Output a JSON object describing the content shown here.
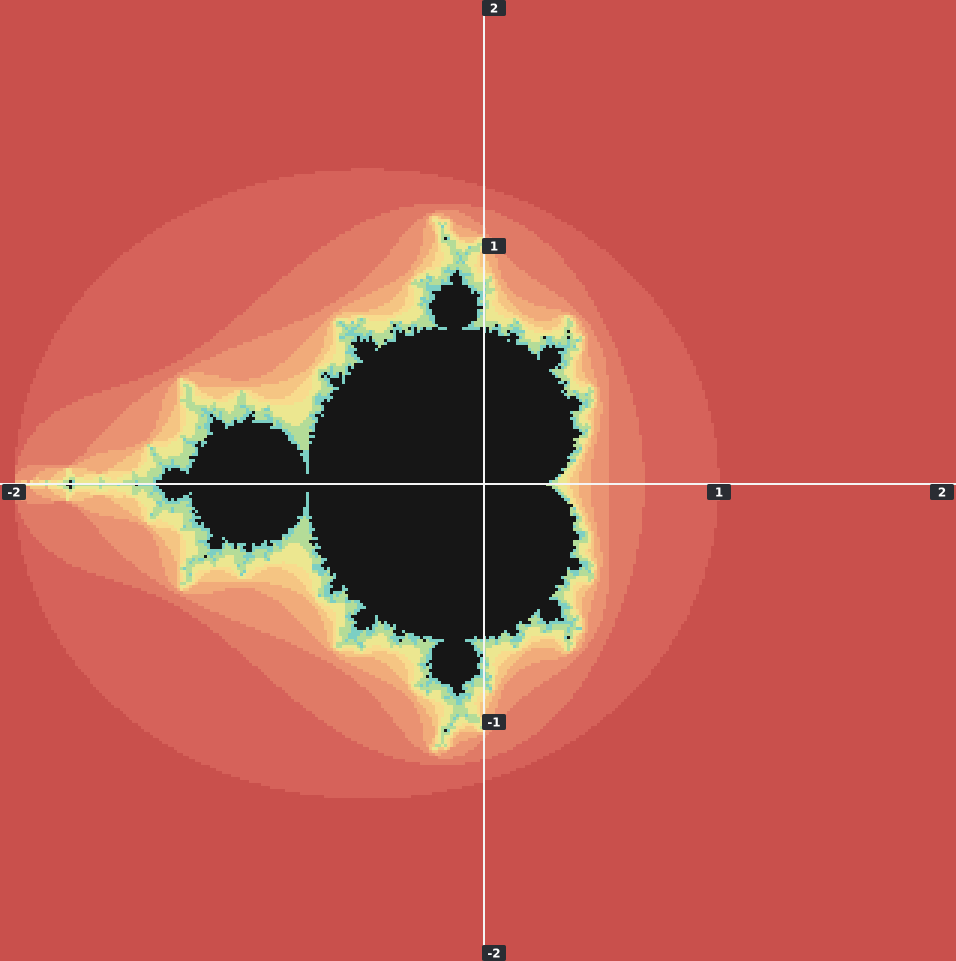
{
  "chart_data": {
    "type": "mandelbrot",
    "xlim": [
      -2,
      2
    ],
    "ylim": [
      -2,
      2
    ],
    "xticks": [
      -2,
      1,
      2
    ],
    "yticks": [
      2,
      1,
      -1,
      -2
    ]
  }
}
